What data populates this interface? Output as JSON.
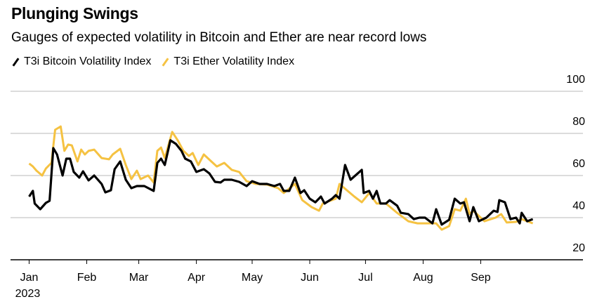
{
  "chart_data": {
    "type": "line",
    "title": "Plunging Swings",
    "subtitle": "Gauges of expected volatility in Bitcoin and Ether are near record lows",
    "xlabel": "",
    "ylabel": "",
    "ylim": [
      20,
      100
    ],
    "xlim": [
      "2022-12-22",
      "2023-10-26"
    ],
    "yticks": [
      20,
      40,
      60,
      80,
      100
    ],
    "xticks": [
      {
        "date": "2023-01-01",
        "label": "Jan",
        "sublabel": "2023"
      },
      {
        "date": "2023-02-01",
        "label": "Feb"
      },
      {
        "date": "2023-03-01",
        "label": "Mar"
      },
      {
        "date": "2023-04-01",
        "label": "Apr"
      },
      {
        "date": "2023-05-01",
        "label": "May"
      },
      {
        "date": "2023-06-01",
        "label": "Jun"
      },
      {
        "date": "2023-07-01",
        "label": "Jul"
      },
      {
        "date": "2023-08-01",
        "label": "Aug"
      },
      {
        "date": "2023-09-01",
        "label": "Sep"
      }
    ],
    "grid": true,
    "legend_placement": "top-left",
    "series": [
      {
        "name": "T3i Bitcoin Volatility Index",
        "color": "#000000",
        "points": [
          [
            "2023-01-01",
            50
          ],
          [
            "2023-01-03",
            52.7
          ],
          [
            "2023-01-04",
            46.7
          ],
          [
            "2023-01-07",
            44
          ],
          [
            "2023-01-10",
            47
          ],
          [
            "2023-01-12",
            48
          ],
          [
            "2023-01-14",
            73
          ],
          [
            "2023-01-16",
            70
          ],
          [
            "2023-01-19",
            60
          ],
          [
            "2023-01-21",
            68
          ],
          [
            "2023-01-23",
            68
          ],
          [
            "2023-01-25",
            61.7
          ],
          [
            "2023-01-28",
            59
          ],
          [
            "2023-01-30",
            62
          ],
          [
            "2023-02-02",
            57.7
          ],
          [
            "2023-02-05",
            60
          ],
          [
            "2023-02-09",
            56
          ],
          [
            "2023-02-11",
            52
          ],
          [
            "2023-02-14",
            53
          ],
          [
            "2023-02-16",
            63
          ],
          [
            "2023-02-19",
            66.7
          ],
          [
            "2023-02-22",
            58
          ],
          [
            "2023-02-25",
            54
          ],
          [
            "2023-02-28",
            55
          ],
          [
            "2023-03-04",
            55
          ],
          [
            "2023-03-09",
            52.7
          ],
          [
            "2023-03-11",
            66
          ],
          [
            "2023-03-13",
            68
          ],
          [
            "2023-03-15",
            65
          ],
          [
            "2023-03-18",
            76.7
          ],
          [
            "2023-03-21",
            75
          ],
          [
            "2023-03-24",
            71.7
          ],
          [
            "2023-03-26",
            68
          ],
          [
            "2023-03-29",
            66.7
          ],
          [
            "2023-04-01",
            61.7
          ],
          [
            "2023-04-05",
            63
          ],
          [
            "2023-04-08",
            61
          ],
          [
            "2023-04-11",
            57
          ],
          [
            "2023-04-14",
            56.7
          ],
          [
            "2023-04-16",
            58
          ],
          [
            "2023-04-20",
            58
          ],
          [
            "2023-04-24",
            57
          ],
          [
            "2023-04-28",
            55
          ],
          [
            "2023-05-01",
            57.3
          ],
          [
            "2023-05-05",
            56
          ],
          [
            "2023-05-09",
            56
          ],
          [
            "2023-05-13",
            55
          ],
          [
            "2023-05-16",
            56
          ],
          [
            "2023-05-18",
            52.7
          ],
          [
            "2023-05-21",
            52.7
          ],
          [
            "2023-05-24",
            59
          ],
          [
            "2023-05-27",
            51.7
          ],
          [
            "2023-05-29",
            53
          ],
          [
            "2023-06-01",
            49
          ],
          [
            "2023-06-04",
            47.3
          ],
          [
            "2023-06-07",
            50
          ],
          [
            "2023-06-09",
            46.7
          ],
          [
            "2023-06-13",
            49
          ],
          [
            "2023-06-15",
            50.7
          ],
          [
            "2023-06-17",
            49
          ],
          [
            "2023-06-20",
            65
          ],
          [
            "2023-06-23",
            58
          ],
          [
            "2023-06-29",
            62.7
          ],
          [
            "2023-06-30",
            51.7
          ],
          [
            "2023-07-03",
            52.7
          ],
          [
            "2023-07-05",
            49
          ],
          [
            "2023-07-07",
            52.7
          ],
          [
            "2023-07-09",
            46.7
          ],
          [
            "2023-07-12",
            46.7
          ],
          [
            "2023-07-14",
            48.3
          ],
          [
            "2023-07-18",
            45.7
          ],
          [
            "2023-07-20",
            42.3
          ],
          [
            "2023-07-24",
            41.7
          ],
          [
            "2023-07-27",
            39.3
          ],
          [
            "2023-07-30",
            40
          ],
          [
            "2023-08-02",
            40
          ],
          [
            "2023-08-06",
            37.3
          ],
          [
            "2023-08-08",
            44
          ],
          [
            "2023-08-11",
            36.7
          ],
          [
            "2023-08-15",
            39
          ],
          [
            "2023-08-18",
            49
          ],
          [
            "2023-08-21",
            46.7
          ],
          [
            "2023-08-23",
            47.3
          ],
          [
            "2023-08-26",
            38.3
          ],
          [
            "2023-08-28",
            45
          ],
          [
            "2023-08-31",
            38.3
          ],
          [
            "2023-09-04",
            40
          ],
          [
            "2023-09-08",
            43.3
          ],
          [
            "2023-09-10",
            42.7
          ],
          [
            "2023-09-11",
            48.3
          ],
          [
            "2023-09-14",
            47.3
          ],
          [
            "2023-09-17",
            39.3
          ],
          [
            "2023-09-20",
            40
          ],
          [
            "2023-09-22",
            37.3
          ],
          [
            "2023-09-23",
            42.3
          ],
          [
            "2023-09-26",
            38.3
          ],
          [
            "2023-09-29",
            39.3
          ]
        ]
      },
      {
        "name": "T3i Ether Volatility Index",
        "color": "#F5C242",
        "points": [
          [
            "2023-01-01",
            65.7
          ],
          [
            "2023-01-03",
            64.3
          ],
          [
            "2023-01-05",
            62.3
          ],
          [
            "2023-01-08",
            60
          ],
          [
            "2023-01-10",
            63.3
          ],
          [
            "2023-01-13",
            66
          ],
          [
            "2023-01-15",
            81.7
          ],
          [
            "2023-01-18",
            83.3
          ],
          [
            "2023-01-20",
            71.7
          ],
          [
            "2023-01-22",
            74.7
          ],
          [
            "2023-01-24",
            74.3
          ],
          [
            "2023-01-27",
            66.7
          ],
          [
            "2023-01-29",
            72.3
          ],
          [
            "2023-01-31",
            70
          ],
          [
            "2023-02-02",
            71.7
          ],
          [
            "2023-02-05",
            72.3
          ],
          [
            "2023-02-09",
            68.3
          ],
          [
            "2023-02-13",
            67.7
          ],
          [
            "2023-02-15",
            70
          ],
          [
            "2023-02-19",
            72.7
          ],
          [
            "2023-02-22",
            65
          ],
          [
            "2023-02-25",
            58.3
          ],
          [
            "2023-02-28",
            62.3
          ],
          [
            "2023-03-02",
            58.3
          ],
          [
            "2023-03-06",
            60
          ],
          [
            "2023-03-09",
            56.7
          ],
          [
            "2023-03-11",
            71.7
          ],
          [
            "2023-03-13",
            73.3
          ],
          [
            "2023-03-15",
            68.3
          ],
          [
            "2023-03-19",
            80.7
          ],
          [
            "2023-03-22",
            76.7
          ],
          [
            "2023-03-25",
            71.7
          ],
          [
            "2023-03-28",
            69.3
          ],
          [
            "2023-03-30",
            70.7
          ],
          [
            "2023-04-02",
            65
          ],
          [
            "2023-04-05",
            70
          ],
          [
            "2023-04-09",
            66.7
          ],
          [
            "2023-04-12",
            64.3
          ],
          [
            "2023-04-16",
            66
          ],
          [
            "2023-04-20",
            62.7
          ],
          [
            "2023-04-24",
            61.7
          ],
          [
            "2023-04-28",
            57.3
          ],
          [
            "2023-05-03",
            56
          ],
          [
            "2023-05-09",
            55.7
          ],
          [
            "2023-05-15",
            54
          ],
          [
            "2023-05-18",
            51.7
          ],
          [
            "2023-05-24",
            56
          ],
          [
            "2023-05-28",
            48.3
          ],
          [
            "2023-06-02",
            45
          ],
          [
            "2023-06-06",
            43.3
          ],
          [
            "2023-06-08",
            46.7
          ],
          [
            "2023-06-15",
            49
          ],
          [
            "2023-06-17",
            56
          ],
          [
            "2023-06-21",
            53
          ],
          [
            "2023-06-25",
            50
          ],
          [
            "2023-06-29",
            47.3
          ],
          [
            "2023-07-03",
            51.7
          ],
          [
            "2023-07-07",
            46.7
          ],
          [
            "2023-07-12",
            46.7
          ],
          [
            "2023-07-18",
            42.3
          ],
          [
            "2023-07-24",
            38.3
          ],
          [
            "2023-07-29",
            37.3
          ],
          [
            "2023-08-04",
            37.3
          ],
          [
            "2023-08-08",
            37.3
          ],
          [
            "2023-08-11",
            34.3
          ],
          [
            "2023-08-15",
            36
          ],
          [
            "2023-08-18",
            44
          ],
          [
            "2023-08-21",
            43.3
          ],
          [
            "2023-08-24",
            49
          ],
          [
            "2023-08-26",
            41.7
          ],
          [
            "2023-08-28",
            43.3
          ],
          [
            "2023-09-03",
            38.3
          ],
          [
            "2023-09-09",
            40
          ],
          [
            "2023-09-12",
            41.7
          ],
          [
            "2023-09-15",
            37.7
          ],
          [
            "2023-09-20",
            38
          ],
          [
            "2023-09-23",
            39.3
          ],
          [
            "2023-09-29",
            37.3
          ]
        ]
      }
    ]
  }
}
